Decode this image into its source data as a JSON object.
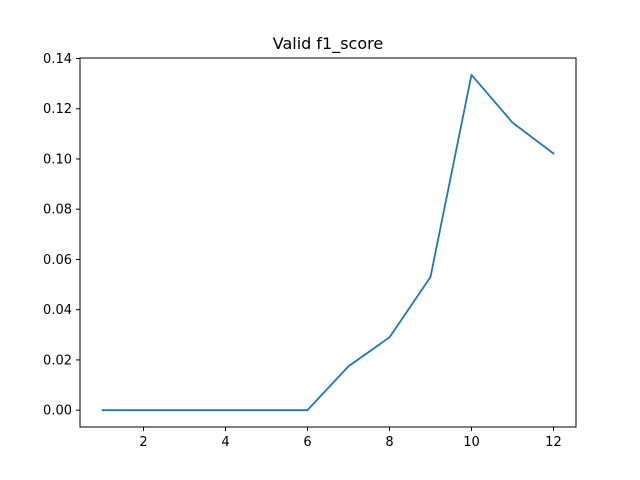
{
  "chart_data": {
    "type": "line",
    "title": "Valid f1_score",
    "xlabel": "",
    "ylabel": "",
    "x": [
      1,
      2,
      3,
      4,
      5,
      6,
      7,
      8,
      9,
      10,
      11,
      12
    ],
    "series": [
      {
        "color": "#1f77b4",
        "values": [
          0.0,
          0.0,
          0.0,
          0.0,
          0.0,
          0.0,
          0.0175,
          0.029,
          0.053,
          0.1335,
          0.1145,
          0.1022
        ]
      }
    ],
    "xlim": [
      0.45,
      12.55
    ],
    "ylim": [
      -0.0067,
      0.1402
    ],
    "xticks": [
      2,
      4,
      6,
      8,
      10,
      12
    ],
    "xtick_labels": [
      "2",
      "4",
      "6",
      "8",
      "10",
      "12"
    ],
    "yticks": [
      0.0,
      0.02,
      0.04,
      0.06,
      0.08,
      0.1,
      0.12,
      0.14
    ],
    "ytick_labels": [
      "0.00",
      "0.02",
      "0.04",
      "0.06",
      "0.08",
      "0.10",
      "0.12",
      "0.14"
    ],
    "grid": false,
    "legend": "none"
  }
}
